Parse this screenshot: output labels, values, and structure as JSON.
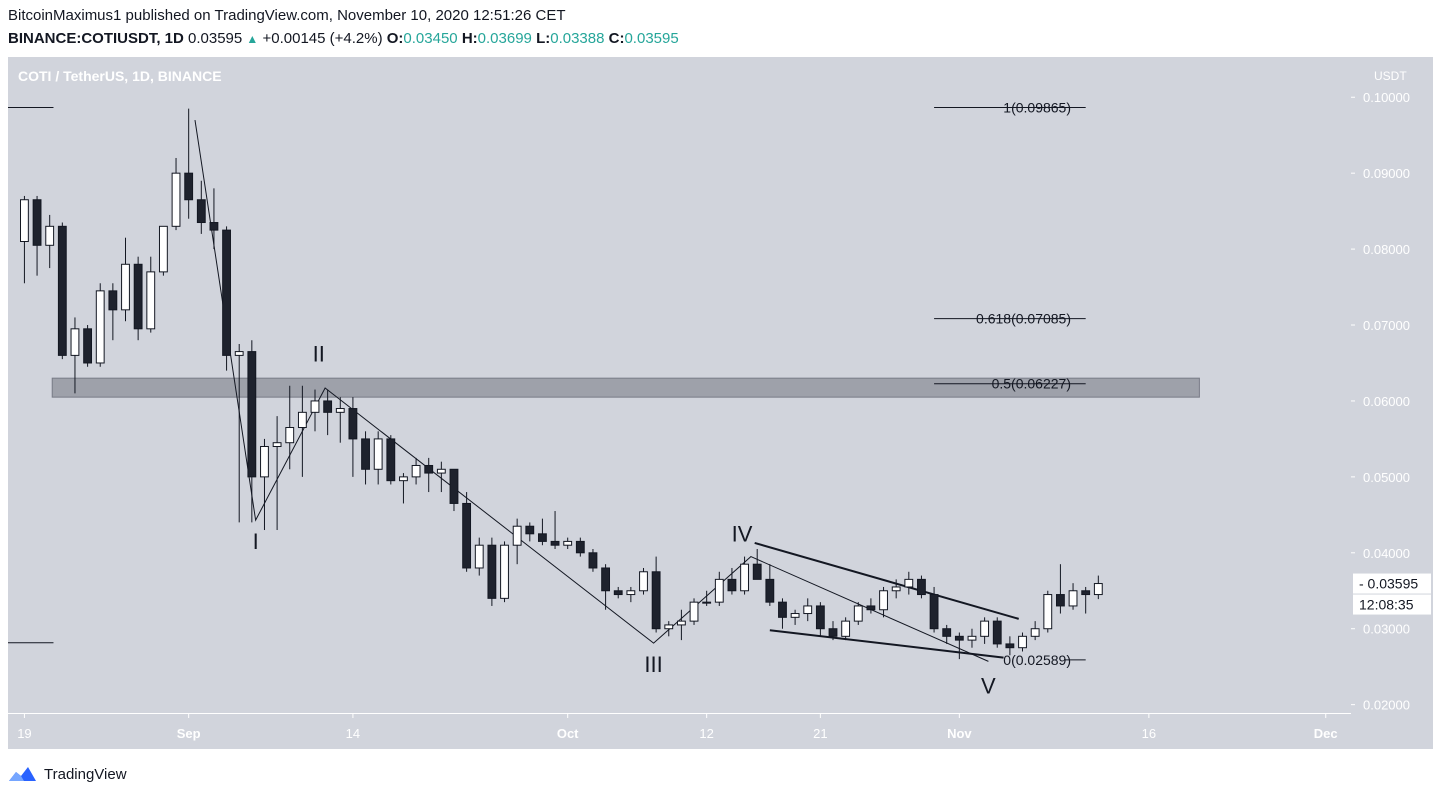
{
  "header": {
    "line1": "BitcoinMaximus1 published on TradingView.com, November 10, 2020 12:51:26 CET",
    "symbol": "BINANCE:COTIUSDT, 1D",
    "last": "0.03595",
    "change": "+0.00145 (+4.2%)",
    "o_label": "O:",
    "o": "0.03450",
    "h_label": "H:",
    "h": "0.03699",
    "l_label": "L:",
    "l": "0.03388",
    "c_label": "C:",
    "c": "0.03595"
  },
  "footer": {
    "brand": "TradingView"
  },
  "colors": {
    "chart_bg": "#d1d4dc",
    "panel_bg": "#ffffff",
    "candle_up_fill": "#ffffff",
    "candle_down_fill": "#1e222d",
    "line": "#131722",
    "zone": "#9598a1",
    "accent": "#26a69a",
    "logo": "#2962ff"
  },
  "chart_data": {
    "type": "candlestick",
    "title": "COTI / TetherUS, 1D, BINANCE",
    "price_unit": "USDT",
    "ylim": [
      0.0189,
      0.1053
    ],
    "y_ticks": [
      "0.10000",
      "0.09000",
      "0.08000",
      "0.07000",
      "0.06000",
      "0.05000",
      "0.04000",
      "0.03000",
      "0.02000"
    ],
    "x_ticks": [
      {
        "label": "19",
        "day": 0
      },
      {
        "label": "Sep",
        "day": 13
      },
      {
        "label": "14",
        "day": 26
      },
      {
        "label": "Oct",
        "day": 43
      },
      {
        "label": "12",
        "day": 54
      },
      {
        "label": "21",
        "day": 63
      },
      {
        "label": "Nov",
        "day": 74
      },
      {
        "label": "16",
        "day": 89
      },
      {
        "label": "Dec",
        "day": 103
      }
    ],
    "x_range_days": [
      -1.3,
      105
    ],
    "last_price_label": "0.03595",
    "countdown_label": "12:08:35",
    "candles": [
      {
        "o": 0.081,
        "h": 0.087,
        "l": 0.0755,
        "c": 0.0865
      },
      {
        "o": 0.0865,
        "h": 0.087,
        "l": 0.0765,
        "c": 0.0805
      },
      {
        "o": 0.0805,
        "h": 0.0845,
        "l": 0.0775,
        "c": 0.083
      },
      {
        "o": 0.083,
        "h": 0.0835,
        "l": 0.0655,
        "c": 0.066
      },
      {
        "o": 0.066,
        "h": 0.071,
        "l": 0.061,
        "c": 0.0695
      },
      {
        "o": 0.0695,
        "h": 0.07,
        "l": 0.0645,
        "c": 0.065
      },
      {
        "o": 0.065,
        "h": 0.0755,
        "l": 0.0645,
        "c": 0.0745
      },
      {
        "o": 0.0745,
        "h": 0.0755,
        "l": 0.068,
        "c": 0.072
      },
      {
        "o": 0.072,
        "h": 0.0815,
        "l": 0.0705,
        "c": 0.078
      },
      {
        "o": 0.078,
        "h": 0.079,
        "l": 0.068,
        "c": 0.0695
      },
      {
        "o": 0.0695,
        "h": 0.079,
        "l": 0.069,
        "c": 0.077
      },
      {
        "o": 0.077,
        "h": 0.083,
        "l": 0.0765,
        "c": 0.083
      },
      {
        "o": 0.083,
        "h": 0.092,
        "l": 0.0825,
        "c": 0.09
      },
      {
        "o": 0.09,
        "h": 0.0985,
        "l": 0.084,
        "c": 0.0865
      },
      {
        "o": 0.0865,
        "h": 0.089,
        "l": 0.082,
        "c": 0.0835
      },
      {
        "o": 0.0835,
        "h": 0.088,
        "l": 0.08,
        "c": 0.0825
      },
      {
        "o": 0.0825,
        "h": 0.083,
        "l": 0.064,
        "c": 0.066
      },
      {
        "o": 0.066,
        "h": 0.0675,
        "l": 0.044,
        "c": 0.0665
      },
      {
        "o": 0.0665,
        "h": 0.068,
        "l": 0.044,
        "c": 0.05
      },
      {
        "o": 0.05,
        "h": 0.055,
        "l": 0.043,
        "c": 0.054
      },
      {
        "o": 0.054,
        "h": 0.058,
        "l": 0.043,
        "c": 0.0545
      },
      {
        "o": 0.0545,
        "h": 0.062,
        "l": 0.051,
        "c": 0.0565
      },
      {
        "o": 0.0565,
        "h": 0.062,
        "l": 0.05,
        "c": 0.0585
      },
      {
        "o": 0.0585,
        "h": 0.0615,
        "l": 0.056,
        "c": 0.06
      },
      {
        "o": 0.06,
        "h": 0.0615,
        "l": 0.0555,
        "c": 0.0585
      },
      {
        "o": 0.0585,
        "h": 0.0605,
        "l": 0.0545,
        "c": 0.059
      },
      {
        "o": 0.059,
        "h": 0.0605,
        "l": 0.05,
        "c": 0.055
      },
      {
        "o": 0.055,
        "h": 0.056,
        "l": 0.049,
        "c": 0.051
      },
      {
        "o": 0.051,
        "h": 0.056,
        "l": 0.049,
        "c": 0.055
      },
      {
        "o": 0.055,
        "h": 0.0555,
        "l": 0.049,
        "c": 0.0495
      },
      {
        "o": 0.0495,
        "h": 0.0505,
        "l": 0.0465,
        "c": 0.05
      },
      {
        "o": 0.05,
        "h": 0.0525,
        "l": 0.049,
        "c": 0.0515
      },
      {
        "o": 0.0515,
        "h": 0.0525,
        "l": 0.048,
        "c": 0.0505
      },
      {
        "o": 0.0505,
        "h": 0.052,
        "l": 0.048,
        "c": 0.051
      },
      {
        "o": 0.051,
        "h": 0.051,
        "l": 0.0455,
        "c": 0.0465
      },
      {
        "o": 0.0465,
        "h": 0.048,
        "l": 0.0375,
        "c": 0.038
      },
      {
        "o": 0.038,
        "h": 0.042,
        "l": 0.037,
        "c": 0.041
      },
      {
        "o": 0.041,
        "h": 0.042,
        "l": 0.033,
        "c": 0.034
      },
      {
        "o": 0.034,
        "h": 0.0415,
        "l": 0.0335,
        "c": 0.041
      },
      {
        "o": 0.041,
        "h": 0.0445,
        "l": 0.0385,
        "c": 0.0435
      },
      {
        "o": 0.0435,
        "h": 0.044,
        "l": 0.0415,
        "c": 0.0425
      },
      {
        "o": 0.0425,
        "h": 0.0445,
        "l": 0.041,
        "c": 0.0415
      },
      {
        "o": 0.0415,
        "h": 0.0455,
        "l": 0.0405,
        "c": 0.041
      },
      {
        "o": 0.041,
        "h": 0.042,
        "l": 0.0405,
        "c": 0.0415
      },
      {
        "o": 0.0415,
        "h": 0.042,
        "l": 0.0395,
        "c": 0.04
      },
      {
        "o": 0.04,
        "h": 0.0405,
        "l": 0.0375,
        "c": 0.038
      },
      {
        "o": 0.038,
        "h": 0.0385,
        "l": 0.0325,
        "c": 0.035
      },
      {
        "o": 0.035,
        "h": 0.0355,
        "l": 0.034,
        "c": 0.0345
      },
      {
        "o": 0.0345,
        "h": 0.0355,
        "l": 0.0335,
        "c": 0.035
      },
      {
        "o": 0.035,
        "h": 0.038,
        "l": 0.0345,
        "c": 0.0375
      },
      {
        "o": 0.0375,
        "h": 0.0395,
        "l": 0.0295,
        "c": 0.03
      },
      {
        "o": 0.03,
        "h": 0.031,
        "l": 0.029,
        "c": 0.0305
      },
      {
        "o": 0.0305,
        "h": 0.0325,
        "l": 0.0285,
        "c": 0.031
      },
      {
        "o": 0.031,
        "h": 0.034,
        "l": 0.0305,
        "c": 0.0335
      },
      {
        "o": 0.0335,
        "h": 0.035,
        "l": 0.033,
        "c": 0.0335
      },
      {
        "o": 0.0335,
        "h": 0.0375,
        "l": 0.033,
        "c": 0.0365
      },
      {
        "o": 0.0365,
        "h": 0.038,
        "l": 0.0345,
        "c": 0.035
      },
      {
        "o": 0.035,
        "h": 0.0395,
        "l": 0.0345,
        "c": 0.0385
      },
      {
        "o": 0.0385,
        "h": 0.0405,
        "l": 0.0365,
        "c": 0.0365
      },
      {
        "o": 0.0365,
        "h": 0.0385,
        "l": 0.033,
        "c": 0.0335
      },
      {
        "o": 0.0335,
        "h": 0.034,
        "l": 0.03,
        "c": 0.0315
      },
      {
        "o": 0.0315,
        "h": 0.0325,
        "l": 0.0305,
        "c": 0.032
      },
      {
        "o": 0.032,
        "h": 0.034,
        "l": 0.031,
        "c": 0.033
      },
      {
        "o": 0.033,
        "h": 0.0335,
        "l": 0.029,
        "c": 0.03
      },
      {
        "o": 0.03,
        "h": 0.031,
        "l": 0.0285,
        "c": 0.029
      },
      {
        "o": 0.029,
        "h": 0.0315,
        "l": 0.0285,
        "c": 0.031
      },
      {
        "o": 0.031,
        "h": 0.0335,
        "l": 0.0305,
        "c": 0.033
      },
      {
        "o": 0.033,
        "h": 0.034,
        "l": 0.032,
        "c": 0.0325
      },
      {
        "o": 0.0325,
        "h": 0.0355,
        "l": 0.0315,
        "c": 0.035
      },
      {
        "o": 0.035,
        "h": 0.0365,
        "l": 0.034,
        "c": 0.0355
      },
      {
        "o": 0.0355,
        "h": 0.0375,
        "l": 0.0345,
        "c": 0.0365
      },
      {
        "o": 0.0365,
        "h": 0.037,
        "l": 0.034,
        "c": 0.0345
      },
      {
        "o": 0.0345,
        "h": 0.0355,
        "l": 0.0295,
        "c": 0.03
      },
      {
        "o": 0.03,
        "h": 0.0305,
        "l": 0.028,
        "c": 0.029
      },
      {
        "o": 0.029,
        "h": 0.0295,
        "l": 0.026,
        "c": 0.0285
      },
      {
        "o": 0.0285,
        "h": 0.03,
        "l": 0.0275,
        "c": 0.029
      },
      {
        "o": 0.029,
        "h": 0.0315,
        "l": 0.028,
        "c": 0.031
      },
      {
        "o": 0.031,
        "h": 0.0315,
        "l": 0.0275,
        "c": 0.028
      },
      {
        "o": 0.028,
        "h": 0.029,
        "l": 0.0265,
        "c": 0.0275
      },
      {
        "o": 0.0275,
        "h": 0.0295,
        "l": 0.027,
        "c": 0.029
      },
      {
        "o": 0.029,
        "h": 0.031,
        "l": 0.0285,
        "c": 0.03
      },
      {
        "o": 0.03,
        "h": 0.035,
        "l": 0.0295,
        "c": 0.0345
      },
      {
        "o": 0.0345,
        "h": 0.0385,
        "l": 0.032,
        "c": 0.033
      },
      {
        "o": 0.033,
        "h": 0.036,
        "l": 0.0325,
        "c": 0.035
      },
      {
        "o": 0.035,
        "h": 0.0355,
        "l": 0.032,
        "c": 0.0345
      },
      {
        "o": 0.0345,
        "h": 0.037,
        "l": 0.0339,
        "c": 0.03595
      }
    ],
    "fib_levels": [
      {
        "label": "1(0.09865)",
        "value": 0.09865
      },
      {
        "label": "0.618(0.07085)",
        "value": 0.07085
      },
      {
        "label": "0.5(0.06227)",
        "value": 0.06227
      },
      {
        "label": "0(0.02589)",
        "value": 0.02589
      }
    ],
    "fib_range_days": [
      72,
      84
    ],
    "zone": {
      "day_start": 2.2,
      "day_end": 93,
      "low": 0.0605,
      "high": 0.063
    },
    "left_lines": [
      {
        "value": 0.09865,
        "day_start": -1.3,
        "day_end": 2.3
      },
      {
        "value": 0.02815,
        "day_start": -1.3,
        "day_end": 2.3
      }
    ],
    "wave_path": [
      {
        "day": 13.5,
        "value": 0.097
      },
      {
        "day": 18.3,
        "value": 0.0443
      },
      {
        "day": 23.8,
        "value": 0.0617
      },
      {
        "day": 49.8,
        "value": 0.0281
      },
      {
        "day": 57.5,
        "value": 0.0395
      },
      {
        "day": 76.3,
        "value": 0.0257
      }
    ],
    "wave_labels": [
      {
        "label": "I",
        "day": 18.3,
        "value": 0.0405
      },
      {
        "label": "II",
        "day": 23.3,
        "value": 0.0652
      },
      {
        "label": "III",
        "day": 49.8,
        "value": 0.0243
      },
      {
        "label": "IV",
        "day": 56.8,
        "value": 0.0415
      },
      {
        "label": "V",
        "day": 76.3,
        "value": 0.0215
      }
    ],
    "wedge_lines": [
      {
        "d1": 57.8,
        "v1": 0.0413,
        "d2": 78.7,
        "v2": 0.0313
      },
      {
        "d1": 59.0,
        "v1": 0.0298,
        "d2": 77.5,
        "v2": 0.0262
      }
    ]
  }
}
